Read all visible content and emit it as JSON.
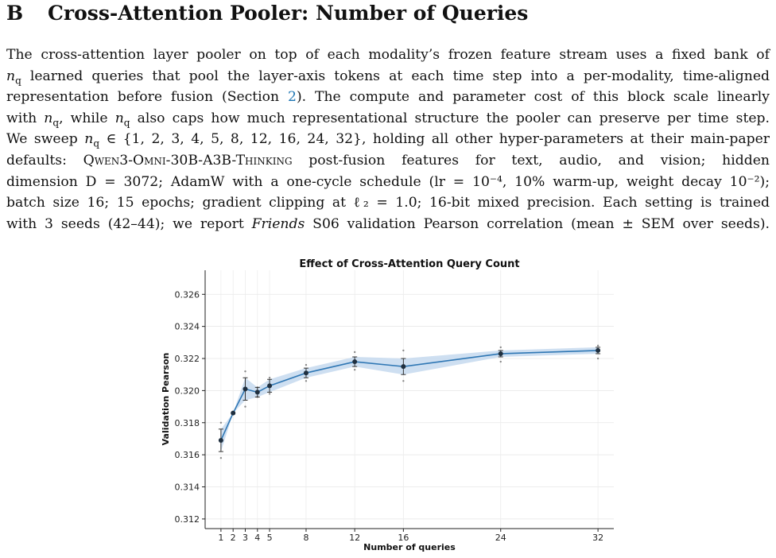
{
  "section": {
    "number": "B",
    "title": "Cross-Attention Pooler: Number of Queries"
  },
  "paragraph": {
    "l1": "The cross-attention layer pooler on top of each modality’s frozen feature stream uses a fixed bank of",
    "l2": "n_q learned queries that pool the layer-axis tokens at each time step into a per-modality, time-aligned",
    "l3a": "representation before fusion (Section ",
    "l3ref": "2",
    "l3b": "). The compute and parameter cost of this block scale linearly",
    "l4": "with n_q, while n_q also caps how much representational structure the pooler can preserve per time step.",
    "l5": "We sweep n_q ∈ {1, 2, 3, 4, 5, 8, 12, 16, 24, 32}, holding all other hyper-parameters at their main-paper",
    "l6a": "defaults: ",
    "l6sc": "Qwen3-Omni-30B-A3B-Thinking",
    "l6b": " post-fusion features for text, audio, and vision; hidden",
    "l7": "dimension D = 3072; AdamW with a one-cycle schedule (lr = 10⁻⁴, 10% warm-up, weight decay 10⁻²);",
    "l8": "batch size 16; 15 epochs; gradient clipping at ℓ₂ = 1.0; 16-bit mixed precision. Each setting is trained",
    "l9a": "with 3 seeds (42–44); we report ",
    "l9it": "Friends",
    "l9b": " S06 validation Pearson correlation (mean ± SEM over seeds)."
  },
  "chart_data": {
    "type": "line",
    "title": "Effect of Cross-Attention Query Count",
    "xlabel": "Number of queries",
    "ylabel": "Validation Pearson",
    "x": [
      1,
      2,
      3,
      4,
      5,
      8,
      12,
      16,
      24,
      32
    ],
    "xticks": [
      "1",
      "2",
      "3",
      "4",
      "5",
      "8",
      "12",
      "16",
      "24",
      "32"
    ],
    "yticks": [
      "0.312",
      "0.314",
      "0.316",
      "0.318",
      "0.320",
      "0.322",
      "0.324",
      "0.326"
    ],
    "ylim": [
      0.3114,
      0.3275
    ],
    "series": [
      {
        "mean": [
          0.3169,
          0.3186,
          0.3201,
          0.3199,
          0.3203,
          0.3211,
          0.3218,
          0.3215,
          0.3223,
          0.3225
        ],
        "sem": [
          0.0007,
          0.0,
          0.0007,
          0.0003,
          0.0004,
          0.0003,
          0.0003,
          0.0005,
          0.0002,
          0.0002
        ],
        "seeds": [
          [
            0.3158,
            0.3169,
            0.318
          ],
          [
            0.3186,
            0.3186,
            0.3186
          ],
          [
            0.319,
            0.3201,
            0.3212
          ],
          [
            0.3196,
            0.3199,
            0.3202
          ],
          [
            0.3198,
            0.3203,
            0.3208
          ],
          [
            0.3206,
            0.3211,
            0.3216
          ],
          [
            0.3213,
            0.3218,
            0.3224
          ],
          [
            0.3206,
            0.3215,
            0.3225
          ],
          [
            0.3218,
            0.3223,
            0.3227
          ],
          [
            0.322,
            0.3225,
            0.3228
          ]
        ]
      }
    ],
    "grid": true,
    "colors": {
      "line": "#2f77b4",
      "band": "#c9dcef",
      "marker": "#1f2f3f",
      "seed": "#888888"
    }
  }
}
